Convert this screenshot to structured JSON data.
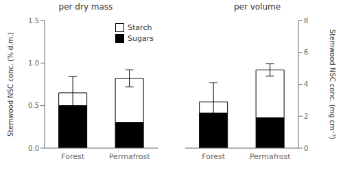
{
  "chart_data": [
    {
      "type": "bar",
      "stacked": true,
      "title": "per dry mass",
      "y_label": "Stemwood NSC conc. (% d.m.)",
      "categories": [
        "Forest",
        "Permafrost"
      ],
      "series": [
        {
          "name": "Sugars",
          "color": "#000000",
          "values": [
            0.5,
            0.3
          ]
        },
        {
          "name": "Starch",
          "color": "#ffffff",
          "values": [
            0.15,
            0.52
          ],
          "errors": [
            0.19,
            0.1
          ]
        }
      ],
      "ylim": [
        0,
        1.5
      ],
      "yticks": [
        {
          "value": 0,
          "label": "0.0"
        },
        0.5,
        {
          "value": 1,
          "label": "1.0"
        },
        1.5
      ],
      "legend": "upper right"
    },
    {
      "type": "bar",
      "stacked": true,
      "title": "per volume",
      "y_label": "Stemwood NSC conc. (mg cm⁻³)",
      "categories": [
        "Forest",
        "Permafrost"
      ],
      "series": [
        {
          "name": "Sugars",
          "color": "#000000",
          "values": [
            2.2,
            1.9
          ]
        },
        {
          "name": "Starch",
          "color": "#ffffff",
          "values": [
            0.7,
            3.0
          ],
          "errors": [
            1.2,
            0.38
          ]
        }
      ],
      "ylim": [
        0,
        8
      ],
      "yticks": [
        0,
        2,
        4,
        6,
        8
      ]
    }
  ]
}
